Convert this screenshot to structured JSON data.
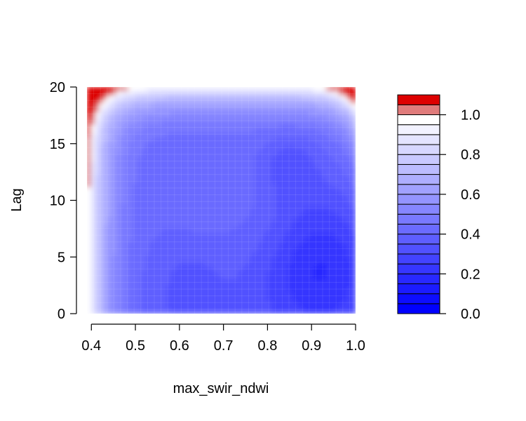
{
  "chart_data": {
    "type": "heatmap",
    "subtype": "filled-contour",
    "title": "",
    "xlabel": "max_swir_ndwi",
    "ylabel": "Lag",
    "xlim": [
      0.39,
      1.0
    ],
    "ylim": [
      0,
      20
    ],
    "x_ticks": [
      0.4,
      0.5,
      0.6,
      0.7,
      0.8,
      0.9,
      1.0
    ],
    "x_tick_labels": [
      "0.4",
      "0.5",
      "0.6",
      "0.7",
      "0.8",
      "0.9",
      "1.0"
    ],
    "y_ticks": [
      0,
      5,
      10,
      15,
      20
    ],
    "y_tick_labels": [
      "0",
      "5",
      "10",
      "15",
      "20"
    ],
    "grid": true,
    "legend": {
      "placement": "right",
      "ticks": [
        0.0,
        0.2,
        0.4,
        0.6,
        0.8,
        1.0
      ],
      "tick_labels": [
        "0.0",
        "0.2",
        "0.4",
        "0.6",
        "0.8",
        "1.0"
      ],
      "levels": [
        0.0,
        0.05,
        0.1,
        0.15,
        0.2,
        0.25,
        0.3,
        0.35,
        0.4,
        0.45,
        0.5,
        0.55,
        0.6,
        0.65,
        0.7,
        0.75,
        0.8,
        0.85,
        0.9,
        0.95,
        1.0,
        1.05,
        1.1,
        1.15
      ],
      "colors": [
        "#0000ff",
        "#0d0dff",
        "#1b1bff",
        "#2828ff",
        "#3636ff",
        "#4343ff",
        "#5151ff",
        "#5e5eff",
        "#6b6bff",
        "#7979ff",
        "#8686ff",
        "#9494ff",
        "#a1a1ff",
        "#aeaeff",
        "#bcbcff",
        "#c9c9ff",
        "#d7d7ff",
        "#e4e4ff",
        "#f2f2ff",
        "#ffffff",
        "#e07b7b",
        "#dd0000"
      ]
    },
    "colors": {
      "low": "#0000ff",
      "mid": "#ffffff",
      "high": "#dd0000"
    }
  }
}
